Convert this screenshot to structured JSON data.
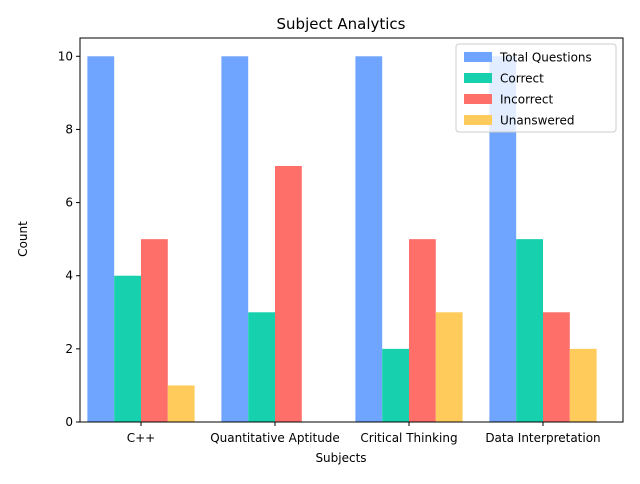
{
  "chart_data": {
    "type": "bar",
    "title": "Subject Analytics",
    "xlabel": "Subjects",
    "ylabel": "Count",
    "categories": [
      "C++",
      "Quantitative Aptitude",
      "Critical Thinking",
      "Data Interpretation"
    ],
    "series": [
      {
        "name": "Total Questions",
        "values": [
          10,
          10,
          10,
          10
        ],
        "color": "#6fa5ff"
      },
      {
        "name": "Correct",
        "values": [
          4,
          3,
          2,
          5
        ],
        "color": "#17d0ad"
      },
      {
        "name": "Incorrect",
        "values": [
          5,
          7,
          5,
          3
        ],
        "color": "#ff6f69"
      },
      {
        "name": "Unanswered",
        "values": [
          1,
          0,
          3,
          2
        ],
        "color": "#ffcc5c"
      }
    ],
    "ylim": [
      0,
      10.5
    ],
    "yticks": [
      0,
      2,
      4,
      6,
      8,
      10
    ],
    "grid": false,
    "legend_position": "top-right"
  }
}
